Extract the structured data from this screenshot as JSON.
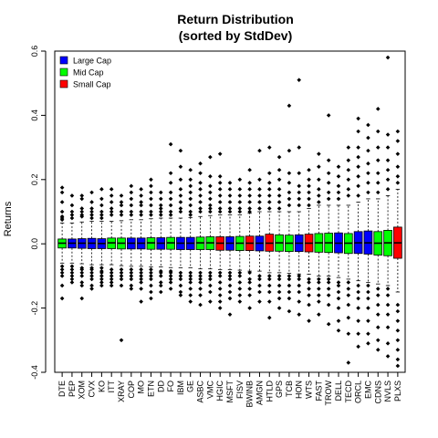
{
  "chart_data": {
    "type": "boxplot",
    "title": [
      "Return Distribution",
      "(sorted by StdDev)"
    ],
    "ylabel": "Returns",
    "xlabel": "",
    "ylim": [
      -0.4,
      0.6
    ],
    "yticks": [
      -0.4,
      -0.2,
      0.0,
      0.2,
      0.4,
      0.6
    ],
    "ytick_labels": [
      "-0.4",
      "-0.2",
      "0.0",
      "0.2",
      "0.4",
      "0.6"
    ],
    "legend": {
      "position": "top-left",
      "entries": [
        {
          "label": "Large Cap",
          "color": "#0000ff"
        },
        {
          "label": "Mid Cap",
          "color": "#00ff00"
        },
        {
          "label": "Small Cap",
          "color": "#ff0000"
        }
      ]
    },
    "series": [
      {
        "name": "DTE",
        "cap": "Mid Cap",
        "q1": -0.013,
        "median": 0.002,
        "q3": 0.015,
        "whisker_low": -0.06,
        "whisker_high": 0.065,
        "outliers": [
          0.175,
          0.16,
          0.13,
          0.1,
          0.085,
          0.08,
          0.075,
          -0.07,
          -0.08,
          -0.09,
          -0.1,
          -0.13,
          -0.17
        ]
      },
      {
        "name": "PEP",
        "cap": "Large Cap",
        "q1": -0.013,
        "median": 0.002,
        "q3": 0.015,
        "whisker_low": -0.06,
        "whisker_high": 0.065,
        "outliers": [
          0.15,
          0.12,
          0.1,
          0.09,
          0.08,
          -0.07,
          -0.08,
          -0.09,
          -0.1,
          -0.11,
          -0.12
        ]
      },
      {
        "name": "XOM",
        "cap": "Large Cap",
        "q1": -0.014,
        "median": 0.002,
        "q3": 0.016,
        "whisker_low": -0.062,
        "whisker_high": 0.068,
        "outliers": [
          0.15,
          0.14,
          0.11,
          0.1,
          0.09,
          0.085,
          -0.075,
          -0.08,
          -0.09,
          -0.1,
          -0.12,
          -0.13,
          -0.17
        ]
      },
      {
        "name": "CVX",
        "cap": "Large Cap",
        "q1": -0.015,
        "median": 0.002,
        "q3": 0.017,
        "whisker_low": -0.065,
        "whisker_high": 0.07,
        "outliers": [
          0.16,
          0.13,
          0.11,
          0.1,
          0.09,
          0.08,
          -0.075,
          -0.08,
          -0.09,
          -0.1,
          -0.11,
          -0.13,
          -0.14
        ]
      },
      {
        "name": "KO",
        "cap": "Large Cap",
        "q1": -0.015,
        "median": 0.001,
        "q3": 0.016,
        "whisker_low": -0.065,
        "whisker_high": 0.07,
        "outliers": [
          0.17,
          0.14,
          0.12,
          0.1,
          0.09,
          0.08,
          -0.075,
          -0.085,
          -0.09,
          -0.1,
          -0.11,
          -0.12,
          -0.13
        ]
      },
      {
        "name": "ITT",
        "cap": "Mid Cap",
        "q1": -0.015,
        "median": 0.003,
        "q3": 0.018,
        "whisker_low": -0.065,
        "whisker_high": 0.07,
        "outliers": [
          0.17,
          0.15,
          0.13,
          0.11,
          0.1,
          0.09,
          -0.08,
          -0.09,
          -0.1,
          -0.11,
          -0.12,
          -0.13
        ]
      },
      {
        "name": "XRAY",
        "cap": "Mid Cap",
        "q1": -0.016,
        "median": 0.002,
        "q3": 0.018,
        "whisker_low": -0.068,
        "whisker_high": 0.072,
        "outliers": [
          0.15,
          0.13,
          0.12,
          0.1,
          0.09,
          -0.08,
          -0.09,
          -0.1,
          -0.11,
          -0.13,
          -0.3
        ]
      },
      {
        "name": "COP",
        "cap": "Large Cap",
        "q1": -0.016,
        "median": 0.002,
        "q3": 0.018,
        "whisker_low": -0.07,
        "whisker_high": 0.075,
        "outliers": [
          0.18,
          0.16,
          0.14,
          0.12,
          0.1,
          0.09,
          -0.08,
          -0.09,
          -0.1,
          -0.11,
          -0.13,
          -0.14
        ]
      },
      {
        "name": "MO",
        "cap": "Large Cap",
        "q1": -0.016,
        "median": 0.002,
        "q3": 0.018,
        "whisker_low": -0.07,
        "whisker_high": 0.075,
        "outliers": [
          0.17,
          0.15,
          0.13,
          0.12,
          0.1,
          0.09,
          -0.08,
          -0.09,
          -0.1,
          -0.11,
          -0.12,
          -0.14,
          -0.18
        ]
      },
      {
        "name": "ETN",
        "cap": "Mid Cap",
        "q1": -0.017,
        "median": 0.003,
        "q3": 0.019,
        "whisker_low": -0.072,
        "whisker_high": 0.078,
        "outliers": [
          0.2,
          0.18,
          0.16,
          0.14,
          0.12,
          0.1,
          0.09,
          -0.08,
          -0.09,
          -0.1,
          -0.11,
          -0.13,
          -0.15,
          -0.17
        ]
      },
      {
        "name": "DD",
        "cap": "Large Cap",
        "q1": -0.017,
        "median": 0.002,
        "q3": 0.019,
        "whisker_low": -0.072,
        "whisker_high": 0.08,
        "outliers": [
          0.16,
          0.14,
          0.12,
          0.11,
          0.1,
          0.09,
          -0.085,
          -0.09,
          -0.1,
          -0.12,
          -0.13,
          -0.15
        ]
      },
      {
        "name": "FO",
        "cap": "Mid Cap",
        "q1": -0.017,
        "median": 0.003,
        "q3": 0.02,
        "whisker_low": -0.074,
        "whisker_high": 0.08,
        "outliers": [
          0.31,
          0.22,
          0.19,
          0.16,
          0.14,
          0.12,
          0.1,
          0.09,
          -0.085,
          -0.09,
          -0.1,
          -0.11,
          -0.12,
          -0.14
        ]
      },
      {
        "name": "IBM",
        "cap": "Large Cap",
        "q1": -0.018,
        "median": 0.002,
        "q3": 0.02,
        "whisker_low": -0.075,
        "whisker_high": 0.08,
        "outliers": [
          0.29,
          0.24,
          0.2,
          0.17,
          0.15,
          0.13,
          0.11,
          0.1,
          -0.09,
          -0.1,
          -0.11,
          -0.13,
          -0.15,
          -0.16
        ]
      },
      {
        "name": "GE",
        "cap": "Large Cap",
        "q1": -0.018,
        "median": 0.002,
        "q3": 0.02,
        "whisker_low": -0.075,
        "whisker_high": 0.082,
        "outliers": [
          0.23,
          0.2,
          0.18,
          0.16,
          0.14,
          0.12,
          0.1,
          0.09,
          -0.09,
          -0.1,
          -0.11,
          -0.12,
          -0.14,
          -0.16,
          -0.18
        ]
      },
      {
        "name": "ASBC",
        "cap": "Mid Cap",
        "q1": -0.018,
        "median": 0.003,
        "q3": 0.021,
        "whisker_low": -0.078,
        "whisker_high": 0.085,
        "outliers": [
          0.25,
          0.22,
          0.19,
          0.17,
          0.15,
          0.13,
          0.11,
          0.1,
          -0.09,
          -0.1,
          -0.11,
          -0.12,
          -0.14,
          -0.16,
          -0.19
        ]
      },
      {
        "name": "VMC",
        "cap": "Mid Cap",
        "q1": -0.018,
        "median": 0.003,
        "q3": 0.022,
        "whisker_low": -0.078,
        "whisker_high": 0.088,
        "outliers": [
          0.27,
          0.21,
          0.18,
          0.16,
          0.14,
          0.12,
          0.11,
          0.1,
          -0.09,
          -0.1,
          -0.11,
          -0.13,
          -0.15,
          -0.18
        ]
      },
      {
        "name": "HGIC",
        "cap": "Small Cap",
        "q1": -0.02,
        "median": 0.002,
        "q3": 0.022,
        "whisker_low": -0.08,
        "whisker_high": 0.09,
        "outliers": [
          0.28,
          0.21,
          0.19,
          0.17,
          0.15,
          0.13,
          0.11,
          0.1,
          -0.09,
          -0.1,
          -0.12,
          -0.14,
          -0.16,
          -0.18,
          -0.2
        ]
      },
      {
        "name": "MSFT",
        "cap": "Large Cap",
        "q1": -0.02,
        "median": 0.002,
        "q3": 0.022,
        "whisker_low": -0.08,
        "whisker_high": 0.09,
        "outliers": [
          0.19,
          0.17,
          0.15,
          0.13,
          0.11,
          0.1,
          -0.09,
          -0.1,
          -0.11,
          -0.13,
          -0.15,
          -0.17,
          -0.22
        ]
      },
      {
        "name": "FISV",
        "cap": "Mid Cap",
        "q1": -0.021,
        "median": 0.002,
        "q3": 0.023,
        "whisker_low": -0.082,
        "whisker_high": 0.09,
        "outliers": [
          0.2,
          0.17,
          0.15,
          0.13,
          0.11,
          0.1,
          -0.09,
          -0.1,
          -0.12,
          -0.14,
          -0.16,
          -0.18
        ]
      },
      {
        "name": "BWINB",
        "cap": "Small Cap",
        "q1": -0.021,
        "median": 0.002,
        "q3": 0.024,
        "whisker_low": -0.085,
        "whisker_high": 0.095,
        "outliers": [
          0.23,
          0.19,
          0.17,
          0.15,
          0.13,
          0.11,
          0.1,
          -0.09,
          -0.11,
          -0.12,
          -0.14,
          -0.16,
          -0.2
        ]
      },
      {
        "name": "AMGN",
        "cap": "Large Cap",
        "q1": -0.022,
        "median": 0.002,
        "q3": 0.024,
        "whisker_low": -0.085,
        "whisker_high": 0.1,
        "outliers": [
          0.29,
          0.2,
          0.17,
          0.15,
          0.13,
          0.11,
          -0.1,
          -0.11,
          -0.13,
          -0.15,
          -0.18
        ]
      },
      {
        "name": "HTLD",
        "cap": "Small Cap",
        "q1": -0.023,
        "median": 0.002,
        "q3": 0.03,
        "whisker_low": -0.09,
        "whisker_high": 0.1,
        "outliers": [
          0.3,
          0.22,
          0.19,
          0.17,
          0.15,
          0.13,
          0.11,
          -0.1,
          -0.11,
          -0.13,
          -0.15,
          -0.18,
          -0.23
        ]
      },
      {
        "name": "GPS",
        "cap": "Mid Cap",
        "q1": -0.023,
        "median": 0.003,
        "q3": 0.028,
        "whisker_low": -0.09,
        "whisker_high": 0.1,
        "outliers": [
          0.27,
          0.23,
          0.2,
          0.17,
          0.15,
          0.13,
          0.11,
          -0.1,
          -0.11,
          -0.13,
          -0.15,
          -0.17,
          -0.2
        ]
      },
      {
        "name": "TCB",
        "cap": "Mid Cap",
        "q1": -0.024,
        "median": 0.002,
        "q3": 0.027,
        "whisker_low": -0.092,
        "whisker_high": 0.1,
        "outliers": [
          0.43,
          0.29,
          0.22,
          0.19,
          0.16,
          0.14,
          0.12,
          -0.1,
          -0.11,
          -0.13,
          -0.15,
          -0.17,
          -0.21
        ]
      },
      {
        "name": "HON",
        "cap": "Large Cap",
        "q1": -0.024,
        "median": 0.002,
        "q3": 0.028,
        "whisker_low": -0.094,
        "whisker_high": 0.1,
        "outliers": [
          0.51,
          0.3,
          0.22,
          0.18,
          0.16,
          0.14,
          0.12,
          -0.1,
          -0.11,
          -0.13,
          -0.15,
          -0.18,
          -0.22
        ]
      },
      {
        "name": "WTS",
        "cap": "Small Cap",
        "q1": -0.025,
        "median": 0.002,
        "q3": 0.03,
        "whisker_low": -0.095,
        "whisker_high": 0.11,
        "outliers": [
          0.23,
          0.2,
          0.18,
          0.16,
          0.14,
          0.12,
          -0.11,
          -0.12,
          -0.14,
          -0.16,
          -0.19,
          -0.24
        ]
      },
      {
        "name": "FAST",
        "cap": "Mid Cap",
        "q1": -0.026,
        "median": 0.003,
        "q3": 0.032,
        "whisker_low": -0.1,
        "whisker_high": 0.12,
        "outliers": [
          0.28,
          0.24,
          0.2,
          0.17,
          0.15,
          0.13,
          -0.11,
          -0.12,
          -0.14,
          -0.16,
          -0.18,
          -0.22
        ]
      },
      {
        "name": "TROW",
        "cap": "Mid Cap",
        "q1": -0.027,
        "median": 0.003,
        "q3": 0.033,
        "whisker_low": -0.1,
        "whisker_high": 0.12,
        "outliers": [
          0.4,
          0.26,
          0.22,
          0.19,
          0.16,
          0.14,
          -0.11,
          -0.12,
          -0.14,
          -0.16,
          -0.19,
          -0.25
        ]
      },
      {
        "name": "DELL",
        "cap": "Large Cap",
        "q1": -0.028,
        "median": 0.002,
        "q3": 0.034,
        "whisker_low": -0.105,
        "whisker_high": 0.12,
        "outliers": [
          0.24,
          0.21,
          0.18,
          0.16,
          0.14,
          -0.12,
          -0.13,
          -0.15,
          -0.17,
          -0.2,
          -0.24,
          -0.27
        ]
      },
      {
        "name": "TECD",
        "cap": "Mid Cap",
        "q1": -0.03,
        "median": 0.002,
        "q3": 0.032,
        "whisker_low": -0.11,
        "whisker_high": 0.12,
        "outliers": [
          0.3,
          0.26,
          0.23,
          0.2,
          0.17,
          0.15,
          -0.12,
          -0.14,
          -0.16,
          -0.19,
          -0.23,
          -0.28,
          -0.37
        ]
      },
      {
        "name": "ORCL",
        "cap": "Large Cap",
        "q1": -0.03,
        "median": 0.003,
        "q3": 0.038,
        "whisker_low": -0.115,
        "whisker_high": 0.13,
        "outliers": [
          0.39,
          0.35,
          0.3,
          0.27,
          0.24,
          0.21,
          0.18,
          0.15,
          -0.13,
          -0.15,
          -0.17,
          -0.2,
          -0.24,
          -0.28,
          -0.32
        ]
      },
      {
        "name": "EMC",
        "cap": "Large Cap",
        "q1": -0.032,
        "median": 0.003,
        "q3": 0.04,
        "whisker_low": -0.12,
        "whisker_high": 0.14,
        "outliers": [
          0.37,
          0.33,
          0.29,
          0.25,
          0.22,
          0.19,
          0.16,
          -0.13,
          -0.15,
          -0.17,
          -0.2,
          -0.24,
          -0.28,
          -0.31
        ]
      },
      {
        "name": "CDNS",
        "cap": "Mid Cap",
        "q1": -0.035,
        "median": 0.002,
        "q3": 0.038,
        "whisker_low": -0.125,
        "whisker_high": 0.14,
        "outliers": [
          0.42,
          0.35,
          0.3,
          0.26,
          0.22,
          0.19,
          0.16,
          -0.14,
          -0.16,
          -0.19,
          -0.22,
          -0.26,
          -0.3,
          -0.33
        ]
      },
      {
        "name": "NVLS",
        "cap": "Mid Cap",
        "q1": -0.037,
        "median": 0.003,
        "q3": 0.042,
        "whisker_low": -0.13,
        "whisker_high": 0.15,
        "outliers": [
          0.58,
          0.34,
          0.3,
          0.26,
          0.23,
          0.2,
          0.17,
          -0.14,
          -0.16,
          -0.19,
          -0.22,
          -0.26,
          -0.31,
          -0.35
        ]
      },
      {
        "name": "PLXS",
        "cap": "Small Cap",
        "q1": -0.045,
        "median": 0.003,
        "q3": 0.052,
        "whisker_low": -0.15,
        "whisker_high": 0.17,
        "outliers": [
          0.35,
          0.32,
          0.28,
          0.24,
          0.21,
          0.19,
          -0.19,
          -0.21,
          -0.24,
          -0.27,
          -0.3,
          -0.33,
          -0.36,
          -0.38
        ]
      }
    ]
  }
}
